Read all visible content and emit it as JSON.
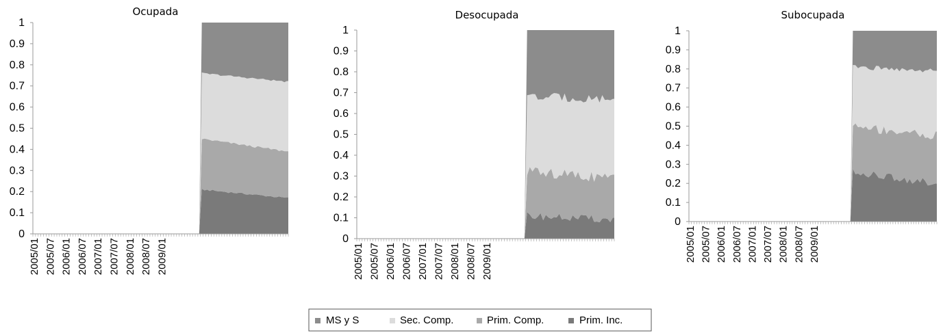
{
  "colors": {
    "MS y S": "#8c8c8c",
    "Sec. Comp.": "#dcdcdc",
    "Prim. Comp.": "#a9a9a9",
    "Prim. Inc.": "#7a7a7a",
    "axis": "#9a9a9a",
    "legend_border": "#555555"
  },
  "chart_data": [
    {
      "type": "area",
      "stacked": true,
      "title": "Ocupada",
      "x_tick_labels": [
        "2005/01",
        "2005/07",
        "2006/01",
        "2006/07",
        "2007/01",
        "2007/07",
        "2008/01",
        "2008/07",
        "2009/01"
      ],
      "y_tick_labels": [
        "0",
        "0.1",
        "0.2",
        "0.3",
        "0.4",
        "0.5",
        "0.6",
        "0.7",
        "0.8",
        "0.9",
        "1"
      ],
      "ylim": [
        0,
        1
      ],
      "first_period": "2005/01",
      "n_periods": 96,
      "data_start_period": "2010/04",
      "cumulative_levels": {
        "Prim. Inc.": {
          "start": 0.21,
          "end": 0.17,
          "noise": 0.004
        },
        "Prim. Comp.": {
          "start": 0.45,
          "end": 0.39,
          "noise": 0.005
        },
        "Sec. Comp.": {
          "start": 0.76,
          "end": 0.72,
          "noise": 0.004
        },
        "MS y S": {
          "start": 1.0,
          "end": 1.0,
          "noise": 0
        }
      }
    },
    {
      "type": "area",
      "stacked": true,
      "title": "Desocupada",
      "x_tick_labels": [
        "2005/01",
        "2005/07",
        "2006/01",
        "2006/07",
        "2007/01",
        "2007/07",
        "2008/01",
        "2008/07",
        "2009/01"
      ],
      "y_tick_labels": [
        "0",
        "0.1",
        "0.2",
        "0.3",
        "0.4",
        "0.5",
        "0.6",
        "0.7",
        "0.8",
        "0.9",
        "1"
      ],
      "ylim": [
        0,
        1
      ],
      "first_period": "2005/01",
      "n_periods": 96,
      "data_start_period": "2010/04",
      "cumulative_levels": {
        "Prim. Inc.": {
          "start": 0.11,
          "end": 0.09,
          "noise": 0.018
        },
        "Prim. Comp.": {
          "start": 0.32,
          "end": 0.29,
          "noise": 0.025
        },
        "Sec. Comp.": {
          "start": 0.68,
          "end": 0.67,
          "noise": 0.022
        },
        "MS y S": {
          "start": 1.0,
          "end": 1.0,
          "noise": 0
        }
      }
    },
    {
      "type": "area",
      "stacked": true,
      "title": "Subocupada",
      "x_tick_labels": [
        "2005/01",
        "2005/07",
        "2006/01",
        "2006/07",
        "2007/01",
        "2007/07",
        "2008/01",
        "2008/07",
        "2009/01"
      ],
      "y_tick_labels": [
        "0",
        "0.1",
        "0.2",
        "0.3",
        "0.4",
        "0.5",
        "0.6",
        "0.7",
        "0.8",
        "0.9",
        "1"
      ],
      "ylim": [
        0,
        1
      ],
      "first_period": "2005/01",
      "n_periods": 96,
      "data_start_period": "2010/04",
      "cumulative_levels": {
        "Prim. Inc.": {
          "start": 0.26,
          "end": 0.2,
          "noise": 0.02
        },
        "Prim. Comp.": {
          "start": 0.5,
          "end": 0.45,
          "noise": 0.025
        },
        "Sec. Comp.": {
          "start": 0.81,
          "end": 0.79,
          "noise": 0.012
        },
        "MS y S": {
          "start": 1.0,
          "end": 1.0,
          "noise": 0
        }
      }
    }
  ],
  "legend": {
    "items": [
      {
        "label": "MS y S",
        "series": "MS y S"
      },
      {
        "label": "Sec. Comp.",
        "series": "Sec. Comp."
      },
      {
        "label": "Prim. Comp.",
        "series": "Prim. Comp."
      },
      {
        "label": "Prim. Inc.",
        "series": "Prim. Inc."
      }
    ]
  }
}
